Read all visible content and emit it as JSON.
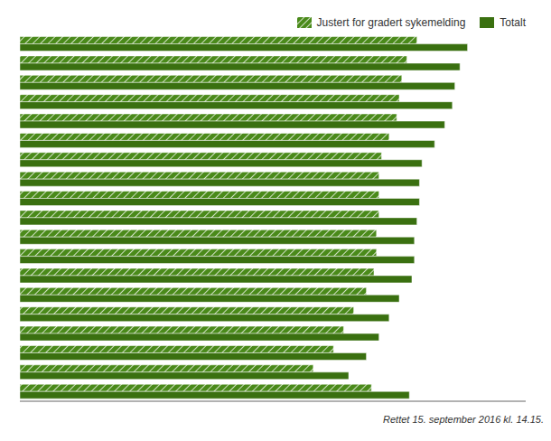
{
  "chart_data": {
    "type": "bar",
    "orientation": "horizontal",
    "categories": [
      null,
      null,
      null,
      null,
      null,
      null,
      null,
      null,
      null,
      null,
      null,
      null,
      null,
      null,
      null,
      null,
      null,
      null,
      null
    ],
    "series": [
      {
        "name": "Justert for gradert sykemelding",
        "color": "#4a8a1a",
        "values": [
          7.85,
          7.65,
          7.55,
          7.5,
          7.45,
          7.3,
          7.15,
          7.1,
          7.1,
          7.1,
          7.05,
          7.05,
          7.0,
          6.85,
          6.6,
          6.4,
          6.2,
          5.8,
          6.95
        ]
      },
      {
        "name": "Totalt",
        "color": "#3a7010",
        "values": [
          8.85,
          8.7,
          8.6,
          8.55,
          8.4,
          8.2,
          7.95,
          7.9,
          7.9,
          7.85,
          7.8,
          7.8,
          7.75,
          7.5,
          7.3,
          7.1,
          6.85,
          6.5,
          7.7
        ]
      }
    ],
    "xlim": [
      0,
      10
    ],
    "xticks": [],
    "grid": false,
    "tick_labels": false,
    "legend": "upper right",
    "annotations": [
      "Rettet 15. september 2016 kl. 14.15."
    ]
  }
}
